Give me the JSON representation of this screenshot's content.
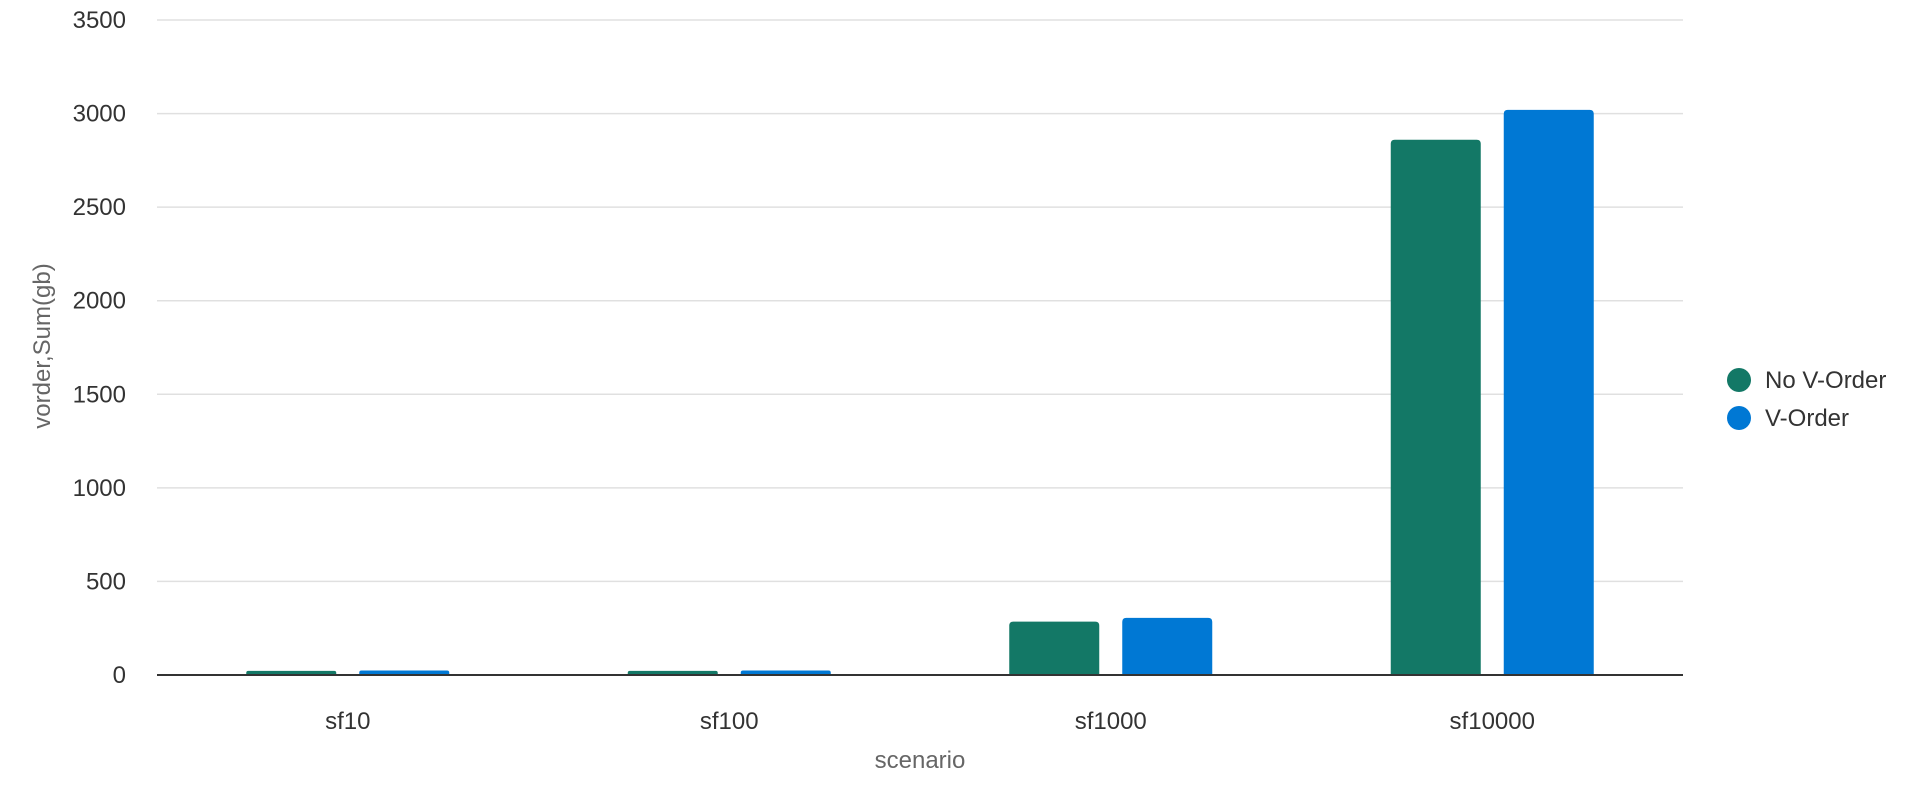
{
  "chart_data": {
    "type": "bar",
    "title": "",
    "xlabel": "scenario",
    "ylabel": "vorder,Sum(gb)",
    "categories": [
      "sf10",
      "sf100",
      "sf1000",
      "sf10000"
    ],
    "series": [
      {
        "name": "No V-Order",
        "color": "#137866",
        "values": [
          22,
          22,
          285,
          2860
        ]
      },
      {
        "name": "V-Order",
        "color": "#0078d4",
        "values": [
          24,
          24,
          305,
          3020
        ]
      }
    ],
    "ylim": [
      0,
      3500
    ],
    "yticks": [
      0,
      500,
      1000,
      1500,
      2000,
      2500,
      3000,
      3500
    ],
    "grid": true,
    "legend_position": "right"
  }
}
